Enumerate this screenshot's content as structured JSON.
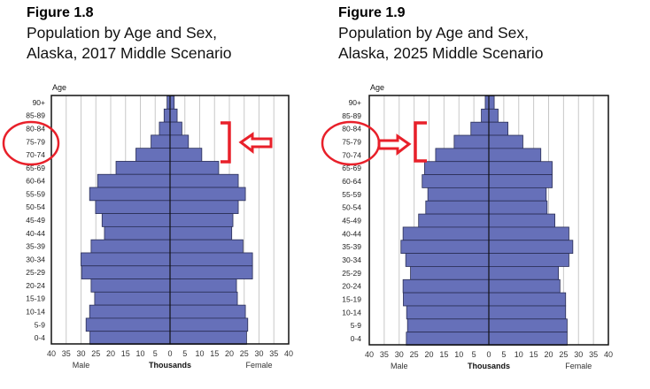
{
  "chart_data": [
    {
      "type": "bar",
      "figure": "Figure 1.8",
      "title": [
        "Population by Age and Sex,",
        "Alaska, 2017 Middle Scenario"
      ],
      "ylabel": "Age",
      "xlabel": "Thousands",
      "left_label": "Male",
      "right_label": "Female",
      "xticks": [
        "40",
        "35",
        "30",
        "25",
        "20",
        "15",
        "10",
        "5",
        "0",
        "5",
        "10",
        "15",
        "20",
        "25",
        "30",
        "35",
        "40"
      ],
      "xlim": [
        -40,
        40
      ],
      "grid": true,
      "categories": [
        "90+",
        "85-89",
        "80-84",
        "75-79",
        "70-74",
        "65-69",
        "60-64",
        "55-59",
        "50-54",
        "45-49",
        "40-44",
        "35-39",
        "30-34",
        "25-29",
        "20-24",
        "15-19",
        "10-14",
        "5-9",
        "0-4"
      ],
      "series": [
        {
          "name": "Male",
          "values": [
            1.0,
            2.0,
            3.6,
            6.4,
            11.5,
            18.2,
            24.4,
            27.1,
            25.1,
            22.9,
            22.1,
            26.6,
            30.0,
            29.8,
            26.6,
            25.4,
            27.1,
            28.3,
            27.0
          ]
        },
        {
          "name": "Female",
          "values": [
            1.4,
            2.4,
            4.0,
            6.2,
            10.7,
            16.4,
            23.0,
            25.4,
            23.0,
            21.2,
            20.8,
            24.6,
            27.8,
            27.8,
            22.4,
            22.7,
            25.4,
            26.2,
            25.8
          ]
        }
      ],
      "annotation": "left"
    },
    {
      "type": "bar",
      "figure": "Figure 1.9",
      "title": [
        "Population by Age and Sex,",
        "Alaska, 2025 Middle Scenario"
      ],
      "ylabel": "Age",
      "xlabel": "Thousands",
      "left_label": "Male",
      "right_label": "Female",
      "xticks": [
        "40",
        "35",
        "30",
        "25",
        "20",
        "15",
        "10",
        "5",
        "0",
        "5",
        "10",
        "15",
        "20",
        "25",
        "30",
        "35",
        "40"
      ],
      "xlim": [
        -40,
        40
      ],
      "grid": true,
      "categories": [
        "90+",
        "85-89",
        "80-84",
        "75-79",
        "70-74",
        "65-69",
        "60-64",
        "55-59",
        "50-54",
        "45-49",
        "40-44",
        "35-39",
        "30-34",
        "25-29",
        "20-24",
        "15-19",
        "10-14",
        "5-9",
        "0-4"
      ],
      "series": [
        {
          "name": "Male",
          "values": [
            1.2,
            2.5,
            6.0,
            11.6,
            17.8,
            21.5,
            22.3,
            20.4,
            21.1,
            23.5,
            28.7,
            29.4,
            27.8,
            26.2,
            28.7,
            28.6,
            27.5,
            27.2,
            27.6
          ]
        },
        {
          "name": "Female",
          "values": [
            1.8,
            3.1,
            6.4,
            11.4,
            17.4,
            21.2,
            21.2,
            19.2,
            19.5,
            22.1,
            26.8,
            28.1,
            26.8,
            23.3,
            23.8,
            25.7,
            25.7,
            26.2,
            26.2
          ]
        }
      ],
      "annotation": "right"
    }
  ],
  "colors": {
    "bar": "#6670b9",
    "outline": "#2a2e55",
    "grid": "#c8c8c8",
    "annotation": "#e8202a"
  }
}
